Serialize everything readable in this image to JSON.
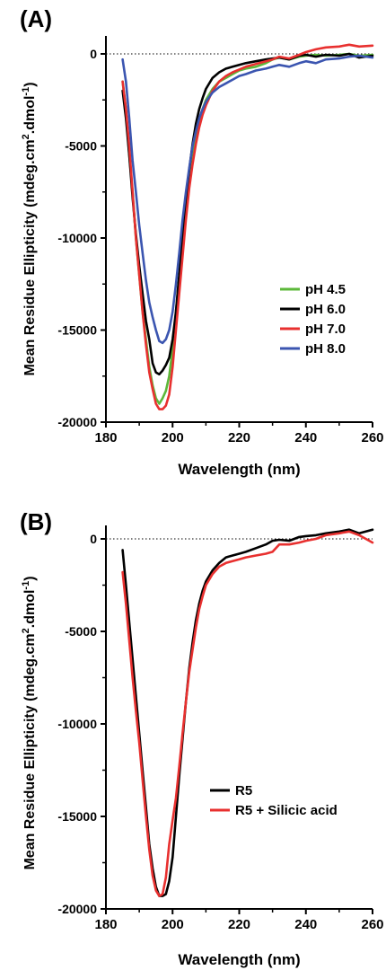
{
  "chart_data": [
    {
      "type": "line",
      "panel_label": "(A)",
      "xlabel": "Wavelength (nm)",
      "ylabel_main": "Mean  Residue Ellipticity (mdeg.cm",
      "ylabel_sup1": "2",
      "ylabel_mid": ".dmol",
      "ylabel_sup2": "-1",
      "ylabel_end": ")",
      "xlim": [
        180,
        260
      ],
      "ylim": [
        -20000,
        1000
      ],
      "xticks": [
        180,
        200,
        220,
        240,
        260
      ],
      "yticks": [
        0,
        -5000,
        -10000,
        -15000,
        -20000
      ],
      "zero_line": "dotted",
      "legend_position": "right",
      "series": [
        {
          "name": "pH 4.5",
          "color": "#5cb83a",
          "x": [
            185,
            186,
            187,
            188,
            189,
            190,
            191,
            192,
            193,
            194,
            195,
            196,
            197,
            198,
            199,
            200,
            201,
            202,
            203,
            204,
            205,
            206,
            207,
            208,
            209,
            210,
            212,
            214,
            216,
            218,
            220,
            222,
            225,
            228,
            230,
            232,
            235,
            238,
            240,
            243,
            246,
            250,
            253,
            256,
            260
          ],
          "y": [
            -1500,
            -3000,
            -5500,
            -7500,
            -10000,
            -12000,
            -14000,
            -15500,
            -17000,
            -18000,
            -18700,
            -19000,
            -18700,
            -18300,
            -17500,
            -16000,
            -14000,
            -12000,
            -10000,
            -8200,
            -6800,
            -5500,
            -4500,
            -3600,
            -3000,
            -2500,
            -1900,
            -1500,
            -1300,
            -1100,
            -900,
            -800,
            -700,
            -500,
            -300,
            -200,
            -300,
            -150,
            -100,
            -50,
            -100,
            -50,
            0,
            -100,
            -50
          ]
        },
        {
          "name": "pH 6.0",
          "color": "#000000",
          "x": [
            185,
            186,
            187,
            188,
            189,
            190,
            191,
            192,
            193,
            194,
            195,
            196,
            197,
            198,
            199,
            200,
            201,
            202,
            203,
            204,
            205,
            206,
            207,
            208,
            209,
            210,
            212,
            214,
            216,
            218,
            220,
            222,
            225,
            228,
            230,
            232,
            235,
            238,
            240,
            243,
            246,
            250,
            253,
            256,
            260
          ],
          "y": [
            -2000,
            -3500,
            -5500,
            -7800,
            -9800,
            -11500,
            -13000,
            -14500,
            -15500,
            -16800,
            -17300,
            -17400,
            -17200,
            -16900,
            -16500,
            -15500,
            -14000,
            -12000,
            -10000,
            -8000,
            -6300,
            -4900,
            -3800,
            -3000,
            -2400,
            -1900,
            -1300,
            -1000,
            -800,
            -700,
            -600,
            -500,
            -400,
            -300,
            -250,
            -200,
            -300,
            -100,
            -50,
            -150,
            -50,
            -100,
            0,
            -200,
            -100
          ]
        },
        {
          "name": "pH 7.0",
          "color": "#e8302f",
          "x": [
            185,
            186,
            187,
            188,
            189,
            190,
            191,
            192,
            193,
            194,
            195,
            196,
            197,
            198,
            199,
            200,
            201,
            202,
            203,
            204,
            205,
            206,
            207,
            208,
            209,
            210,
            212,
            214,
            216,
            218,
            220,
            222,
            225,
            228,
            230,
            232,
            235,
            238,
            240,
            243,
            246,
            250,
            253,
            256,
            260
          ],
          "y": [
            -1500,
            -3000,
            -5000,
            -7500,
            -10000,
            -12000,
            -14000,
            -15800,
            -17300,
            -18200,
            -19000,
            -19300,
            -19300,
            -19100,
            -18500,
            -17000,
            -15000,
            -13000,
            -11000,
            -9000,
            -7300,
            -6000,
            -4900,
            -4000,
            -3300,
            -2800,
            -2000,
            -1500,
            -1200,
            -1000,
            -850,
            -700,
            -550,
            -400,
            -300,
            -150,
            -250,
            -50,
            100,
            250,
            350,
            400,
            500,
            400,
            450
          ]
        },
        {
          "name": "pH 8.0",
          "color": "#3b55b0",
          "x": [
            185,
            186,
            187,
            188,
            189,
            190,
            191,
            192,
            193,
            194,
            195,
            196,
            197,
            198,
            199,
            200,
            201,
            202,
            203,
            204,
            205,
            206,
            207,
            208,
            209,
            210,
            212,
            214,
            216,
            218,
            220,
            222,
            225,
            228,
            230,
            232,
            235,
            238,
            240,
            243,
            246,
            250,
            253,
            256,
            260
          ],
          "y": [
            -300,
            -1500,
            -3500,
            -5800,
            -7500,
            -9300,
            -10800,
            -12300,
            -13500,
            -14300,
            -15000,
            -15600,
            -15700,
            -15500,
            -15000,
            -14000,
            -12500,
            -10800,
            -9000,
            -7500,
            -6200,
            -5000,
            -4200,
            -3500,
            -3000,
            -2600,
            -2100,
            -1800,
            -1600,
            -1400,
            -1200,
            -1100,
            -900,
            -800,
            -700,
            -600,
            -700,
            -500,
            -400,
            -500,
            -300,
            -250,
            -150,
            -100,
            -200
          ]
        }
      ]
    },
    {
      "type": "line",
      "panel_label": "(B)",
      "xlabel": "Wavelength (nm)",
      "ylabel_main": "Mean  Residue Ellipticity (mdeg.cm",
      "ylabel_sup1": "2",
      "ylabel_mid": ".dmol",
      "ylabel_sup2": "-1",
      "ylabel_end": ")",
      "xlim": [
        180,
        260
      ],
      "ylim": [
        -20000,
        1000
      ],
      "xticks": [
        180,
        200,
        220,
        240,
        260
      ],
      "yticks": [
        0,
        -5000,
        -10000,
        -15000,
        -20000
      ],
      "zero_line": "dotted",
      "legend_position": "right",
      "series": [
        {
          "name": "R5",
          "color": "#000000",
          "x": [
            185,
            186,
            187,
            188,
            189,
            190,
            191,
            192,
            193,
            194,
            195,
            196,
            197,
            198,
            199,
            200,
            201,
            202,
            203,
            204,
            205,
            206,
            207,
            208,
            209,
            210,
            212,
            214,
            216,
            218,
            220,
            222,
            225,
            228,
            230,
            232,
            235,
            238,
            240,
            243,
            246,
            250,
            253,
            256,
            260
          ],
          "y": [
            -600,
            -2500,
            -4500,
            -6500,
            -8500,
            -10500,
            -12500,
            -14500,
            -16500,
            -17800,
            -18800,
            -19300,
            -19300,
            -19200,
            -18500,
            -17200,
            -15000,
            -12800,
            -10800,
            -8800,
            -7000,
            -5600,
            -4400,
            -3500,
            -2800,
            -2300,
            -1700,
            -1300,
            -1000,
            -900,
            -800,
            -700,
            -500,
            -300,
            -100,
            -50,
            -100,
            100,
            150,
            200,
            300,
            400,
            500,
            300,
            500
          ]
        },
        {
          "name": "R5 + Silicic acid",
          "color": "#e8302f",
          "x": [
            185,
            186,
            187,
            188,
            189,
            190,
            191,
            192,
            193,
            194,
            195,
            196,
            197,
            198,
            199,
            200,
            201,
            202,
            203,
            204,
            205,
            206,
            207,
            208,
            209,
            210,
            212,
            214,
            216,
            218,
            220,
            222,
            225,
            228,
            230,
            232,
            235,
            238,
            240,
            243,
            246,
            250,
            253,
            256,
            260
          ],
          "y": [
            -1800,
            -3500,
            -5500,
            -7500,
            -9300,
            -11000,
            -13000,
            -15000,
            -16800,
            -18200,
            -19000,
            -19300,
            -19200,
            -18300,
            -16500,
            -15200,
            -14000,
            -12300,
            -10500,
            -8800,
            -7200,
            -6000,
            -4800,
            -3800,
            -3100,
            -2500,
            -1900,
            -1500,
            -1300,
            -1200,
            -1100,
            -1000,
            -900,
            -800,
            -700,
            -300,
            -300,
            -200,
            -100,
            0,
            200,
            300,
            400,
            200,
            -200
          ]
        }
      ]
    }
  ]
}
